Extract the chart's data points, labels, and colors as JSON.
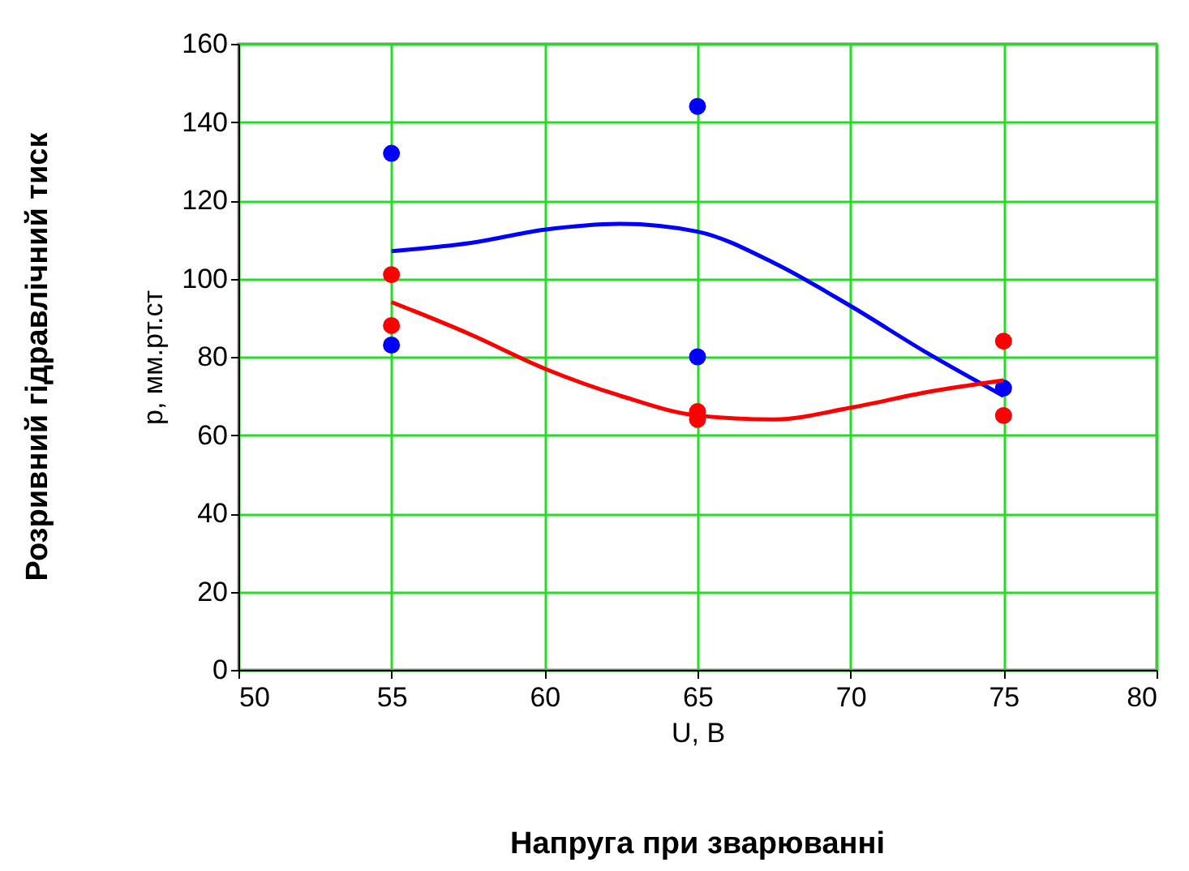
{
  "chart_data": {
    "type": "scatter",
    "xlabel": "U, B",
    "ylabel": "p, мм.рт.ст",
    "annotations": [
      "Напруга при зварюванні",
      "Розривний гідравлічний тиск"
    ],
    "xlim": [
      50,
      80
    ],
    "xticks": [
      50,
      55,
      60,
      65,
      70,
      75,
      80
    ],
    "ylim": [
      0,
      160
    ],
    "yticks": [
      0,
      20,
      40,
      60,
      80,
      100,
      120,
      140,
      160
    ],
    "grid": true,
    "marker": "circle",
    "series": [
      {
        "color": "#0000ff",
        "x": [
          55,
          55,
          65,
          65,
          75
        ],
        "values": [
          132,
          83,
          144,
          80,
          72
        ]
      },
      {
        "color": "#ff0000",
        "x": [
          55,
          55,
          65,
          65,
          75,
          75
        ],
        "values": [
          101,
          88,
          66,
          64,
          84,
          65
        ]
      },
      {
        "type": "line",
        "color": "#0000ff",
        "marker": "none",
        "x": [
          55,
          57.5,
          60,
          62.5,
          65,
          67.5,
          70,
          72.5,
          75
        ],
        "values": [
          107,
          109,
          112.5,
          114,
          112,
          104,
          93,
          81,
          70
        ]
      },
      {
        "type": "line",
        "color": "#ff0000",
        "marker": "none",
        "x": [
          55,
          57.5,
          60,
          62.5,
          65,
          67.5,
          70,
          72.5,
          75
        ],
        "values": [
          94,
          86,
          77,
          70,
          65,
          64,
          67,
          71,
          74
        ]
      }
    ]
  }
}
